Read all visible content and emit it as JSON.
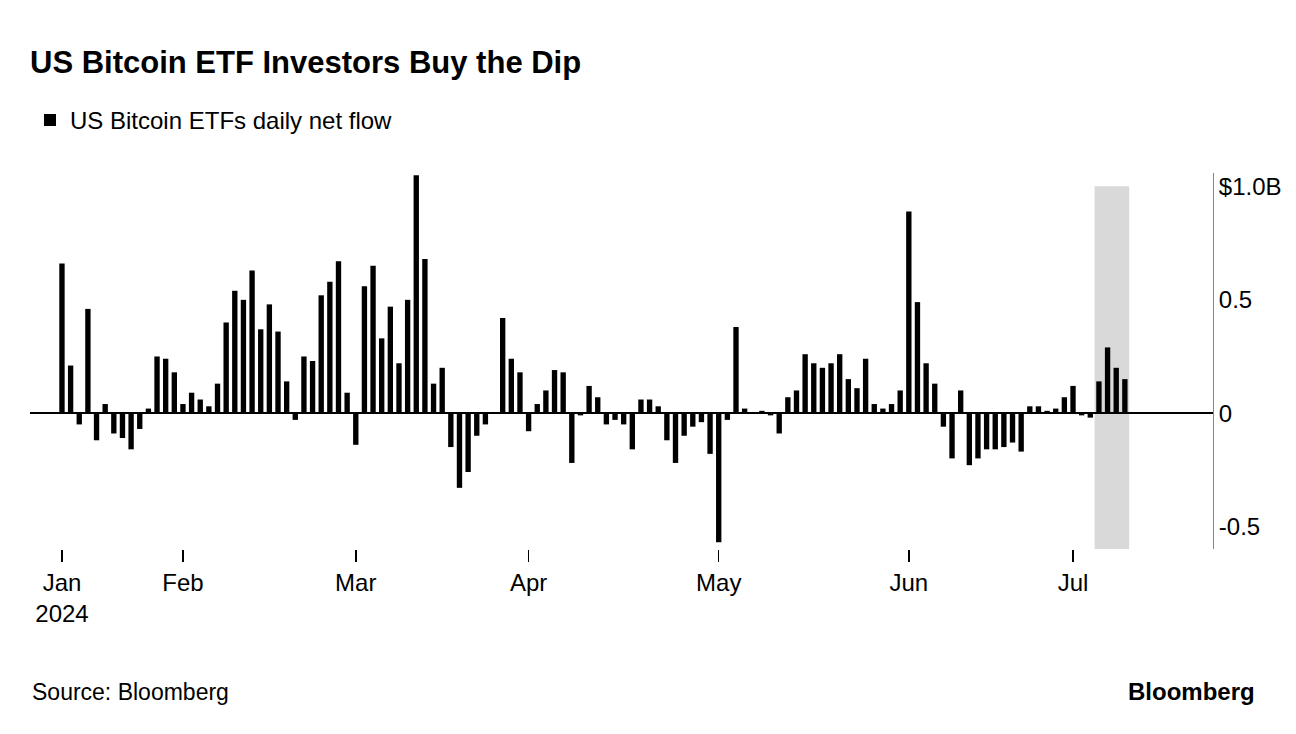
{
  "chart_data": {
    "type": "bar",
    "title": "US Bitcoin ETF Investors Buy the Dip",
    "annotations": [
      {
        "text": "Source: Bloomberg"
      },
      {
        "text": "Bloomberg"
      }
    ],
    "categories": [
      "Jan\n2024",
      null,
      null,
      null,
      null,
      null,
      null,
      null,
      null,
      null,
      null,
      null,
      null,
      null,
      "Feb",
      null,
      null,
      null,
      null,
      null,
      null,
      null,
      null,
      null,
      null,
      null,
      null,
      null,
      null,
      null,
      null,
      null,
      null,
      null,
      "Mar",
      null,
      null,
      null,
      null,
      null,
      null,
      null,
      null,
      null,
      null,
      null,
      null,
      null,
      null,
      null,
      null,
      null,
      null,
      null,
      "Apr",
      null,
      null,
      null,
      null,
      null,
      null,
      null,
      null,
      null,
      null,
      null,
      null,
      null,
      null,
      null,
      null,
      null,
      null,
      null,
      null,
      null,
      "May",
      null,
      null,
      null,
      null,
      null,
      null,
      null,
      null,
      null,
      null,
      null,
      null,
      null,
      null,
      null,
      null,
      null,
      null,
      null,
      null,
      null,
      "Jun",
      null,
      null,
      null,
      null,
      null,
      null,
      null,
      null,
      null,
      null,
      null,
      null,
      null,
      null,
      null,
      null,
      null,
      null,
      "Jul",
      null,
      null,
      null,
      null,
      null,
      null
    ],
    "series": [
      {
        "name": "US Bitcoin ETFs daily net flow",
        "color": "#000000",
        "values": [
          0.66,
          0.21,
          -0.05,
          0.46,
          -0.12,
          0.04,
          -0.09,
          -0.11,
          -0.16,
          -0.07,
          0.02,
          0.25,
          0.24,
          0.18,
          0.04,
          0.09,
          0.06,
          0.03,
          0.13,
          0.4,
          0.54,
          0.5,
          0.63,
          0.37,
          0.48,
          0.36,
          0.14,
          -0.03,
          0.25,
          0.23,
          0.52,
          0.58,
          0.67,
          0.09,
          -0.14,
          0.56,
          0.65,
          0.33,
          0.47,
          0.22,
          0.5,
          1.05,
          0.68,
          0.13,
          0.2,
          -0.15,
          -0.33,
          -0.26,
          -0.1,
          -0.05,
          0.0,
          0.42,
          0.24,
          0.18,
          -0.08,
          0.04,
          0.1,
          0.19,
          0.18,
          -0.22,
          -0.01,
          0.12,
          0.07,
          -0.05,
          -0.03,
          -0.05,
          -0.16,
          0.06,
          0.06,
          0.03,
          -0.12,
          -0.22,
          -0.1,
          -0.06,
          -0.04,
          -0.18,
          -0.57,
          -0.03,
          0.38,
          0.02,
          0.0,
          0.01,
          -0.01,
          -0.09,
          0.07,
          0.1,
          0.26,
          0.22,
          0.2,
          0.22,
          0.26,
          0.15,
          0.11,
          0.24,
          0.04,
          0.02,
          0.04,
          0.1,
          0.89,
          0.49,
          0.22,
          0.13,
          -0.06,
          -0.2,
          0.1,
          -0.23,
          -0.2,
          -0.16,
          -0.16,
          -0.15,
          -0.13,
          -0.17,
          0.03,
          0.03,
          0.01,
          0.02,
          0.07,
          0.12,
          -0.01,
          -0.02,
          0.14,
          0.29,
          0.2,
          0.15
        ]
      }
    ],
    "ylim": [
      -0.6,
      1.06
    ],
    "yticks": [
      -0.5,
      0,
      0.5,
      {
        "value": 1,
        "label": "$1.0B"
      }
    ],
    "grid": false,
    "legend": "top left"
  }
}
